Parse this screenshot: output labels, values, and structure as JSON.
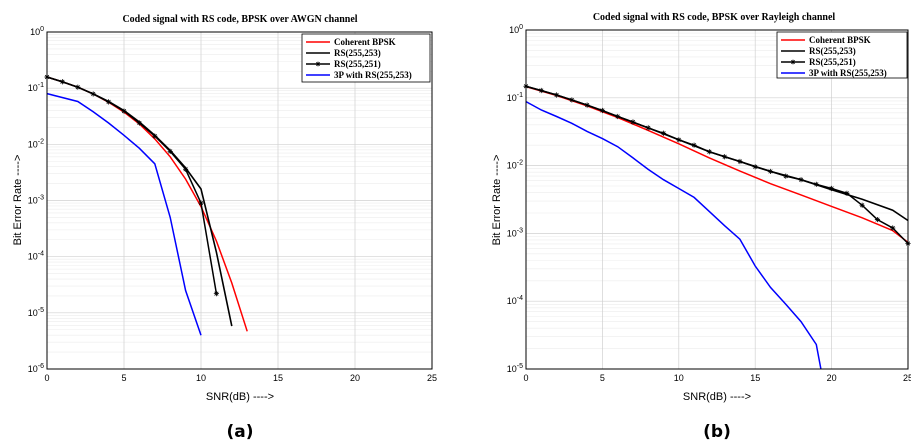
{
  "chart_data": [
    {
      "type": "line",
      "title": "Coded signal with RS code, BPSK over AWGN channel",
      "xlabel": "SNR(dB) ---->",
      "ylabel": "Bit Error Rate ---->",
      "xlim": [
        0,
        25
      ],
      "ylim": [
        1e-06,
        1
      ],
      "yscale": "log",
      "grid": true,
      "legend_position": "top-right",
      "x_ticks": [
        "0",
        "5",
        "10",
        "15",
        "20",
        "25"
      ],
      "y_ticks": [
        "10^-6",
        "10^-5",
        "10^-4",
        "10^-3",
        "10^-2",
        "10^-1",
        "10^0"
      ],
      "caption": "(a)",
      "series": [
        {
          "name": "Coherent BPSK",
          "color": "#ff0000",
          "marker": "none",
          "x": [
            0,
            1,
            2,
            3,
            4,
            5,
            6,
            7,
            8,
            9,
            10,
            11,
            12,
            13
          ],
          "y": [
            0.158,
            0.13,
            0.104,
            0.079,
            0.056,
            0.0375,
            0.023,
            0.0125,
            0.006,
            0.0024,
            0.00078,
            0.00019,
            3.4e-05,
            4.7e-06
          ]
        },
        {
          "name": "RS(255,253)",
          "color": "#000000",
          "marker": "none",
          "x": [
            0,
            1,
            2,
            3,
            4,
            5,
            6,
            7,
            8,
            9,
            10,
            11,
            12
          ],
          "y": [
            0.158,
            0.13,
            0.104,
            0.079,
            0.058,
            0.04,
            0.025,
            0.0145,
            0.0078,
            0.0038,
            0.0016,
            0.00012,
            5.8e-06
          ]
        },
        {
          "name": "RS(255,251)",
          "color": "#000000",
          "marker": "star",
          "x": [
            0,
            1,
            2,
            3,
            4,
            5,
            6,
            7,
            8,
            9,
            10,
            11
          ],
          "y": [
            0.158,
            0.13,
            0.104,
            0.079,
            0.057,
            0.039,
            0.024,
            0.014,
            0.0075,
            0.0036,
            0.0009,
            2.2e-05
          ]
        },
        {
          "name": "3P with RS(255,253)",
          "color": "#0000ff",
          "marker": "none",
          "x": [
            0,
            2,
            3,
            4,
            5,
            6,
            7,
            8,
            9,
            10
          ],
          "y": [
            0.08,
            0.058,
            0.038,
            0.024,
            0.0145,
            0.0085,
            0.0045,
            0.0005,
            2.5e-05,
            4e-06
          ]
        }
      ]
    },
    {
      "type": "line",
      "title": "Coded signal with RS code, BPSK over Rayleigh channel",
      "xlabel": "SNR(dB) ---->",
      "ylabel": "Bit Error Rate ---->",
      "xlim": [
        0,
        25
      ],
      "ylim": [
        1e-05,
        1
      ],
      "yscale": "log",
      "grid": true,
      "legend_position": "top-right",
      "x_ticks": [
        "0",
        "5",
        "10",
        "15",
        "20",
        "25"
      ],
      "y_ticks": [
        "10^-5",
        "10^-4",
        "10^-3",
        "10^-2",
        "10^-1",
        "10^0"
      ],
      "caption": "(b)",
      "series": [
        {
          "name": "Coherent BPSK",
          "color": "#ff0000",
          "marker": "none",
          "x": [
            0,
            2,
            4,
            6,
            8,
            10,
            12,
            14,
            16,
            18,
            20,
            22,
            24,
            25
          ],
          "y": [
            0.146,
            0.108,
            0.076,
            0.051,
            0.033,
            0.021,
            0.013,
            0.0083,
            0.0054,
            0.0037,
            0.0025,
            0.0017,
            0.0011,
            0.00074
          ]
        },
        {
          "name": "RS(255,253)",
          "color": "#000000",
          "marker": "none",
          "x": [
            0,
            2,
            4,
            6,
            8,
            10,
            12,
            14,
            16,
            18,
            20,
            22,
            24,
            25
          ],
          "y": [
            0.148,
            0.11,
            0.078,
            0.053,
            0.036,
            0.024,
            0.016,
            0.0115,
            0.0082,
            0.0062,
            0.0044,
            0.0032,
            0.0022,
            0.00155
          ]
        },
        {
          "name": "RS(255,251)",
          "color": "#000000",
          "marker": "star",
          "x": [
            0,
            1,
            2,
            3,
            4,
            5,
            6,
            7,
            8,
            9,
            10,
            11,
            12,
            13,
            14,
            15,
            16,
            17,
            18,
            19,
            20,
            21,
            22,
            23,
            24,
            25
          ],
          "y": [
            0.148,
            0.128,
            0.11,
            0.093,
            0.078,
            0.065,
            0.053,
            0.044,
            0.036,
            0.03,
            0.024,
            0.02,
            0.016,
            0.0135,
            0.0115,
            0.0096,
            0.0082,
            0.007,
            0.0062,
            0.0053,
            0.0046,
            0.0039,
            0.0026,
            0.0016,
            0.0012,
            0.00071
          ]
        },
        {
          "name": "3P with RS(255,253)",
          "color": "#0000ff",
          "marker": "none",
          "x": [
            0,
            1,
            2,
            3,
            4,
            5,
            6,
            7,
            8,
            9,
            10,
            11,
            12,
            13,
            14,
            15,
            16,
            17,
            18,
            19,
            19.3
          ],
          "y": [
            0.088,
            0.066,
            0.053,
            0.042,
            0.032,
            0.025,
            0.019,
            0.013,
            0.0088,
            0.0062,
            0.0046,
            0.0034,
            0.0021,
            0.0013,
            0.00082,
            0.00033,
            0.00016,
            9e-05,
            5e-05,
            2.3e-05,
            1e-05
          ]
        }
      ]
    }
  ]
}
